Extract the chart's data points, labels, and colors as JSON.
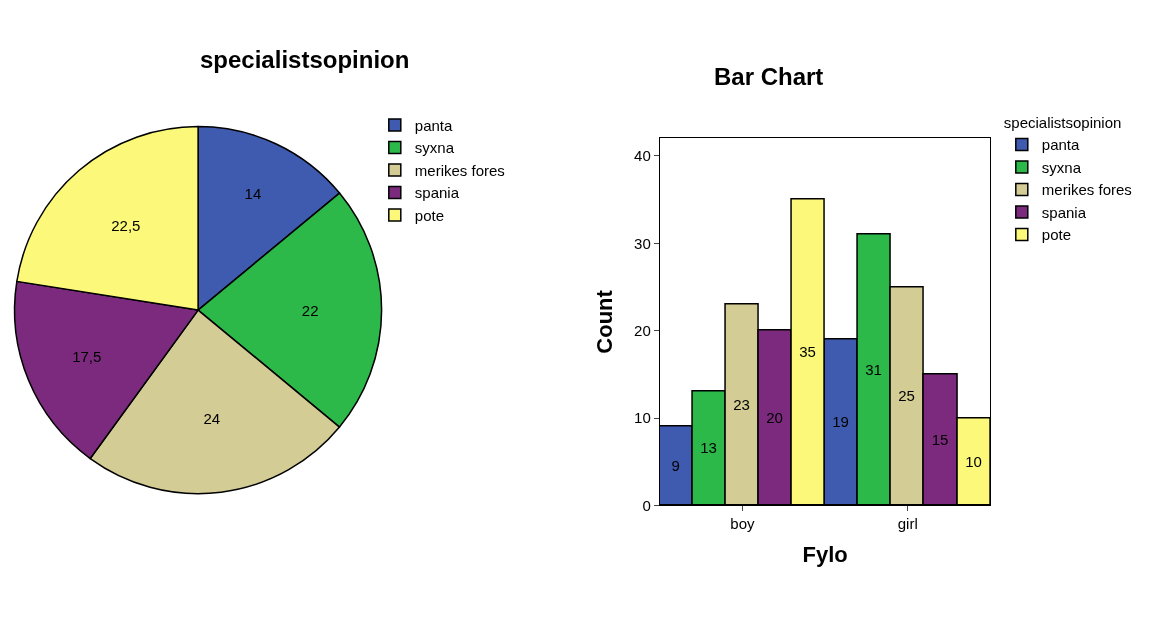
{
  "chart_data": [
    {
      "type": "pie",
      "title": "specialistsopinion",
      "categories": [
        "panta",
        "syxna",
        "merikes fores",
        "spania",
        "pote"
      ],
      "values": [
        14,
        22,
        24,
        17.5,
        22.5
      ],
      "value_labels": [
        "14",
        "22",
        "24",
        "17,5",
        "22,5"
      ],
      "colors": [
        "#3f5bb0",
        "#2db84a",
        "#d3cc95",
        "#7b2a7e",
        "#fbf87a"
      ],
      "legend": "right"
    },
    {
      "type": "bar",
      "title": "Bar Chart",
      "xlabel": "Fylo",
      "ylabel": "Count",
      "legend_title": "specialistsopinion",
      "legend": "right",
      "categories": [
        "boy",
        "girl"
      ],
      "series": [
        {
          "name": "panta",
          "color": "#3f5bb0",
          "values": [
            9,
            19
          ]
        },
        {
          "name": "syxna",
          "color": "#2db84a",
          "values": [
            13,
            31
          ]
        },
        {
          "name": "merikes fores",
          "color": "#d3cc95",
          "values": [
            23,
            25
          ]
        },
        {
          "name": "spania",
          "color": "#7b2a7e",
          "values": [
            20,
            15
          ]
        },
        {
          "name": "pote",
          "color": "#fbf87a",
          "values": [
            35,
            10
          ]
        }
      ],
      "ylim": [
        0,
        42
      ],
      "yticks": [
        0,
        10,
        20,
        30,
        40
      ],
      "data_labels": true
    }
  ]
}
